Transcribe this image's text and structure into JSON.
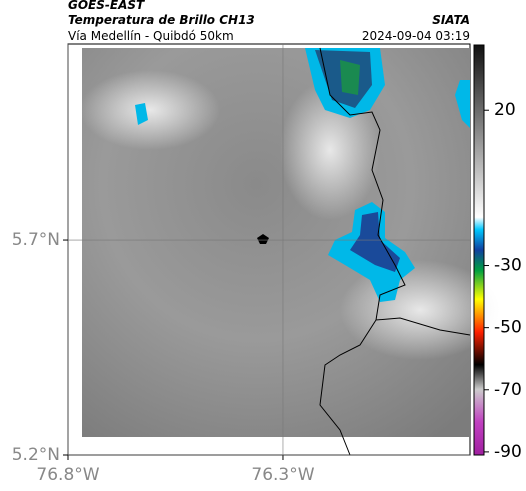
{
  "header": {
    "source": "GOES-EAST",
    "product": "Temperatura de Brillo CH13",
    "org": "SIATA",
    "route": "Vía Medellín - Quibdó 50km",
    "timestamp": "2024-09-04 03:19"
  },
  "map": {
    "xlim": [
      -76.8,
      -75.865
    ],
    "ylim": [
      5.2,
      6.156
    ],
    "xticks": [
      {
        "value": -76.8,
        "label": "76.8°W"
      },
      {
        "value": -76.3,
        "label": "76.3°W"
      }
    ],
    "yticks": [
      {
        "value": 5.7,
        "label": "5.7°N"
      },
      {
        "value": 5.2,
        "label": "5.2°N"
      }
    ],
    "grid": true,
    "colorbar": {
      "lim": [
        41,
        -91
      ],
      "ticks": [
        20,
        -30,
        -50,
        -70,
        -90
      ]
    }
  }
}
